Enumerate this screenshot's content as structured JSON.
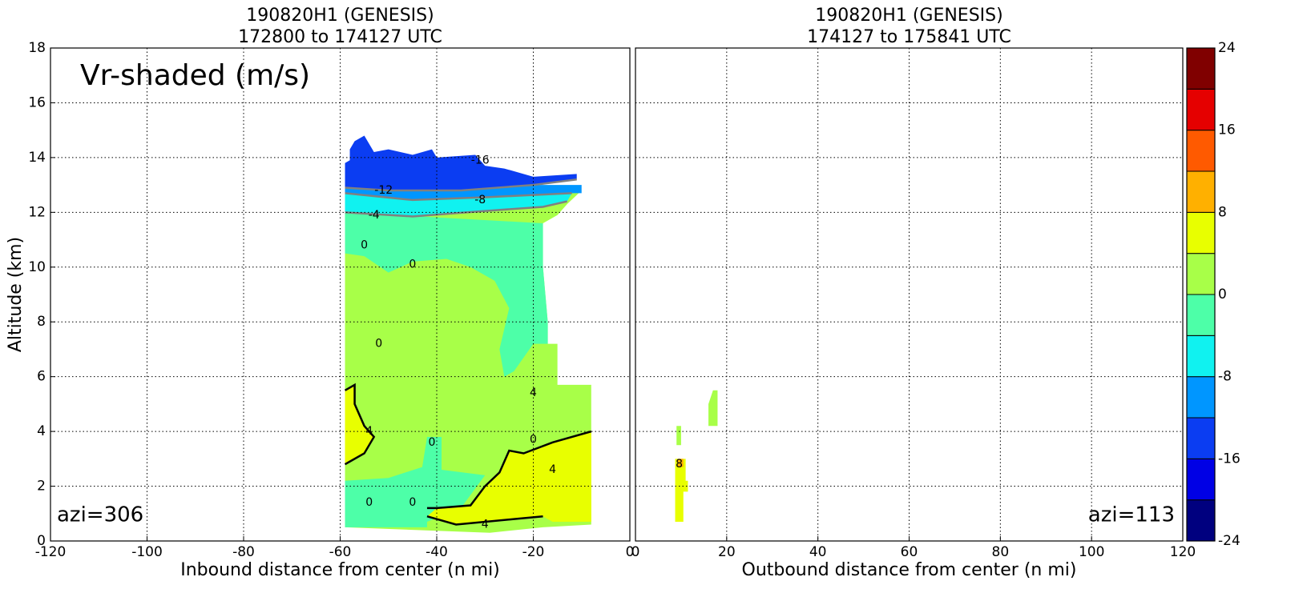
{
  "chart_data": [
    {
      "type": "contourf",
      "title": "190820H1 (GENESIS)",
      "subtitle": "172800 to 174127 UTC",
      "xlabel": "Inbound distance from center (n mi)",
      "ylabel": "Altitude (km)",
      "annotation": "Vr-shaded (m/s)",
      "azimuth_label": "azi=306",
      "xlim": [
        -120,
        0
      ],
      "xticks": [
        -120,
        -100,
        -80,
        -60,
        -40,
        -20,
        0
      ],
      "ylim": [
        0,
        18
      ],
      "yticks": [
        0,
        2,
        4,
        6,
        8,
        10,
        12,
        14,
        16,
        18
      ],
      "grid": true,
      "regions": [
        {
          "value": 0,
          "points": [
            [
              -59,
              0.5
            ],
            [
              -59,
              12.8
            ],
            [
              -10,
              12.8
            ],
            [
              -13,
              12.3
            ],
            [
              -15,
              11.9
            ],
            [
              -18,
              11.6
            ],
            [
              -18,
              10
            ],
            [
              -17,
              8
            ],
            [
              -17,
              7.2
            ],
            [
              -15,
              7.2
            ],
            [
              -15,
              5.7
            ],
            [
              -8,
              5.7
            ],
            [
              -8,
              0.6
            ],
            [
              -18,
              0.5
            ],
            [
              -29,
              0.3
            ],
            [
              -59,
              0.5
            ]
          ]
        },
        {
          "value": -4,
          "points": [
            [
              -59,
              12
            ],
            [
              -18,
              11.6
            ],
            [
              -18,
              10
            ],
            [
              -17,
              8
            ],
            [
              -17,
              7.2
            ],
            [
              -20,
              7.2
            ],
            [
              -24,
              6.2
            ],
            [
              -26,
              6
            ],
            [
              -27,
              7
            ],
            [
              -25,
              8.5
            ],
            [
              -28,
              9.5
            ],
            [
              -33,
              10
            ],
            [
              -38,
              10.3
            ],
            [
              -45,
              10.2
            ],
            [
              -50,
              9.8
            ],
            [
              -55,
              10.4
            ],
            [
              -59,
              10.5
            ]
          ]
        },
        {
          "value": -4,
          "points": [
            [
              -59,
              0.5
            ],
            [
              -59,
              2.2
            ],
            [
              -50,
              2.3
            ],
            [
              -43,
              2.7
            ],
            [
              -42,
              3.8
            ],
            [
              -39,
              3.8
            ],
            [
              -39,
              2.6
            ],
            [
              -30,
              2.4
            ],
            [
              -35,
              1.2
            ],
            [
              -42,
              0.7
            ],
            [
              -42,
              0.5
            ]
          ]
        },
        {
          "value": 4,
          "points": [
            [
              -59,
              5.5
            ],
            [
              -57,
              5.7
            ],
            [
              -57,
              5
            ],
            [
              -55,
              4.2
            ],
            [
              -53,
              3.8
            ],
            [
              -55,
              3.2
            ],
            [
              -58,
              2.9
            ],
            [
              -59,
              2.8
            ]
          ]
        },
        {
          "value": 4,
          "points": [
            [
              -42,
              0.9
            ],
            [
              -36,
              0.6
            ],
            [
              -24,
              0.8
            ],
            [
              -18,
              0.9
            ],
            [
              -16,
              0.7
            ],
            [
              -8,
              0.7
            ],
            [
              -8,
              4
            ],
            [
              -16,
              3.6
            ],
            [
              -22,
              3.2
            ],
            [
              -25,
              3.3
            ],
            [
              -27,
              2.5
            ],
            [
              -30,
              2
            ],
            [
              -33,
              1.3
            ],
            [
              -40,
              1.2
            ]
          ]
        },
        {
          "value": -8,
          "points": [
            [
              -59,
              12
            ],
            [
              -45,
              11.85
            ],
            [
              -30,
              12.05
            ],
            [
              -18,
              12.2
            ],
            [
              -13,
              12.4
            ],
            [
              -12,
              12.7
            ],
            [
              -30,
              12.55
            ],
            [
              -45,
              12.45
            ],
            [
              -59,
              12.7
            ]
          ]
        },
        {
          "value": -12,
          "points": [
            [
              -59,
              12.7
            ],
            [
              -45,
              12.45
            ],
            [
              -30,
              12.55
            ],
            [
              -12,
              12.7
            ],
            [
              -10,
              12.7
            ],
            [
              -10,
              13
            ],
            [
              -20,
              13
            ],
            [
              -35,
              12.8
            ],
            [
              -50,
              12.8
            ],
            [
              -59,
              12.9
            ]
          ]
        },
        {
          "value": -16,
          "points": [
            [
              -59,
              12.9
            ],
            [
              -50,
              12.8
            ],
            [
              -35,
              12.8
            ],
            [
              -20,
              13
            ],
            [
              -11,
              13.2
            ],
            [
              -11,
              13.4
            ],
            [
              -20,
              13.3
            ],
            [
              -26,
              13.6
            ],
            [
              -30,
              13.7
            ],
            [
              -32,
              14.1
            ],
            [
              -40,
              14
            ],
            [
              -41,
              14.3
            ],
            [
              -45,
              14.1
            ],
            [
              -50,
              14.3
            ],
            [
              -53,
              14.2
            ],
            [
              -55,
              14.8
            ],
            [
              -57,
              14.6
            ],
            [
              -58,
              14.3
            ],
            [
              -58,
              13.9
            ],
            [
              -59,
              13.8
            ]
          ]
        }
      ],
      "contours": [
        {
          "value": -4,
          "color": "#808080",
          "points": [
            [
              -59,
              12
            ],
            [
              -45,
              11.85
            ],
            [
              -30,
              12.05
            ],
            [
              -18,
              12.2
            ],
            [
              -13,
              12.4
            ]
          ]
        },
        {
          "value": -8,
          "color": "#808080",
          "points": [
            [
              -59,
              12.7
            ],
            [
              -45,
              12.45
            ],
            [
              -30,
              12.55
            ],
            [
              -12,
              12.7
            ]
          ]
        },
        {
          "value": -12,
          "color": "#808080",
          "points": [
            [
              -59,
              12.9
            ],
            [
              -50,
              12.8
            ],
            [
              -35,
              12.8
            ],
            [
              -20,
              13
            ],
            [
              -11,
              13.2
            ]
          ]
        },
        {
          "value": 4,
          "color": "#000000",
          "points": [
            [
              -42,
              1.2
            ],
            [
              -40,
              1.2
            ],
            [
              -33,
              1.3
            ],
            [
              -30,
              2
            ],
            [
              -27,
              2.5
            ],
            [
              -25,
              3.3
            ],
            [
              -22,
              3.2
            ],
            [
              -16,
              3.6
            ],
            [
              -8,
              4
            ]
          ]
        },
        {
          "value": 4,
          "color": "#000000",
          "points": [
            [
              -59,
              5.5
            ],
            [
              -57,
              5.7
            ],
            [
              -57,
              5
            ],
            [
              -55,
              4.2
            ],
            [
              -53,
              3.8
            ],
            [
              -55,
              3.2
            ],
            [
              -58,
              2.9
            ],
            [
              -59,
              2.8
            ]
          ]
        },
        {
          "value": 4,
          "color": "#000000",
          "points": [
            [
              -42,
              0.9
            ],
            [
              -36,
              0.6
            ],
            [
              -24,
              0.8
            ],
            [
              -18,
              0.9
            ]
          ]
        }
      ],
      "contour_labels": [
        {
          "value": -16,
          "x": -31,
          "y": 13.9
        },
        {
          "value": -12,
          "x": -51,
          "y": 12.8
        },
        {
          "value": -8,
          "x": -31,
          "y": 12.45
        },
        {
          "value": -4,
          "x": -53,
          "y": 11.9
        },
        {
          "value": 0,
          "x": -55,
          "y": 10.8
        },
        {
          "value": 0,
          "x": -45,
          "y": 10.1
        },
        {
          "value": 0,
          "x": -52,
          "y": 7.2
        },
        {
          "value": 4,
          "x": -20,
          "y": 5.4
        },
        {
          "value": 4,
          "x": -54,
          "y": 4
        },
        {
          "value": 0,
          "x": -41,
          "y": 3.6
        },
        {
          "value": 0,
          "x": -20,
          "y": 3.7
        },
        {
          "value": 4,
          "x": -16,
          "y": 2.6
        },
        {
          "value": 0,
          "x": -54,
          "y": 1.4
        },
        {
          "value": 0,
          "x": -45,
          "y": 1.4
        },
        {
          "value": 4,
          "x": -30,
          "y": 0.6
        }
      ]
    },
    {
      "type": "contourf",
      "title": "190820H1 (GENESIS)",
      "subtitle": "174127 to 175841 UTC",
      "xlabel": "Outbound distance from center (n mi)",
      "azimuth_label": "azi=113",
      "xlim": [
        0,
        120
      ],
      "xticks": [
        0,
        20,
        40,
        60,
        80,
        100,
        120
      ],
      "ylim": [
        0,
        18
      ],
      "grid": true,
      "regions": [
        {
          "value": 0,
          "points": [
            [
              9,
              3.5
            ],
            [
              10,
              3.5
            ],
            [
              10,
              4.2
            ],
            [
              9,
              4.2
            ]
          ]
        },
        {
          "value": 0,
          "points": [
            [
              16,
              4.2
            ],
            [
              18,
              4.2
            ],
            [
              18,
              5.5
            ],
            [
              17,
              5.5
            ],
            [
              16,
              5
            ]
          ]
        },
        {
          "value": 4,
          "points": [
            [
              8.7,
              0.7
            ],
            [
              10.5,
              0.7
            ],
            [
              10.5,
              1.8
            ],
            [
              11.5,
              1.8
            ],
            [
              11.5,
              2.2
            ],
            [
              11,
              2.2
            ],
            [
              11,
              3
            ],
            [
              8.7,
              3
            ]
          ]
        },
        {
          "value": 8,
          "points": [
            [
              9.2,
              2.7
            ],
            [
              10.5,
              2.7
            ],
            [
              10.5,
              3
            ],
            [
              9.2,
              3
            ]
          ]
        }
      ],
      "contours": [],
      "contour_labels": [
        {
          "value": 8,
          "x": 9.6,
          "y": 2.8
        }
      ]
    }
  ],
  "colorbar": {
    "levels": [
      -24,
      -20,
      -16,
      -12,
      -8,
      -4,
      0,
      4,
      8,
      12,
      16,
      20,
      24
    ],
    "colors": [
      "#00007f",
      "#0000e5",
      "#0b3df2",
      "#0096ff",
      "#10f2f0",
      "#4dffa8",
      "#a8ff48",
      "#e8ff00",
      "#ffb000",
      "#ff5a00",
      "#e50000",
      "#800000"
    ],
    "ticks": [
      -24,
      -16,
      -8,
      0,
      8,
      16,
      24
    ]
  }
}
